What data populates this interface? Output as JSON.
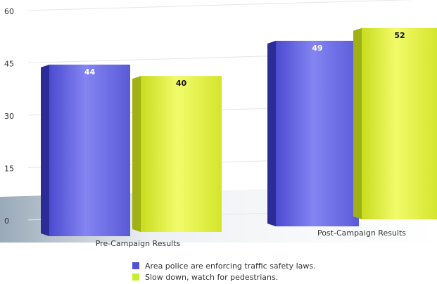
{
  "chart_data": {
    "type": "bar",
    "categories": [
      "Pre-Campaign Results",
      "Post-Campaign Results"
    ],
    "series": [
      {
        "name": "Area police are enforcing traffic safety laws.",
        "values": [
          44,
          49
        ],
        "color": "#6c6ce8"
      },
      {
        "name": "Slow down, watch for pedestrians.",
        "values": [
          40,
          52
        ],
        "color": "#dff03a"
      }
    ],
    "yticks": [
      0,
      15,
      30,
      45,
      60
    ],
    "ylim": [
      0,
      60
    ],
    "grid": true,
    "legend": "bottom-center"
  }
}
